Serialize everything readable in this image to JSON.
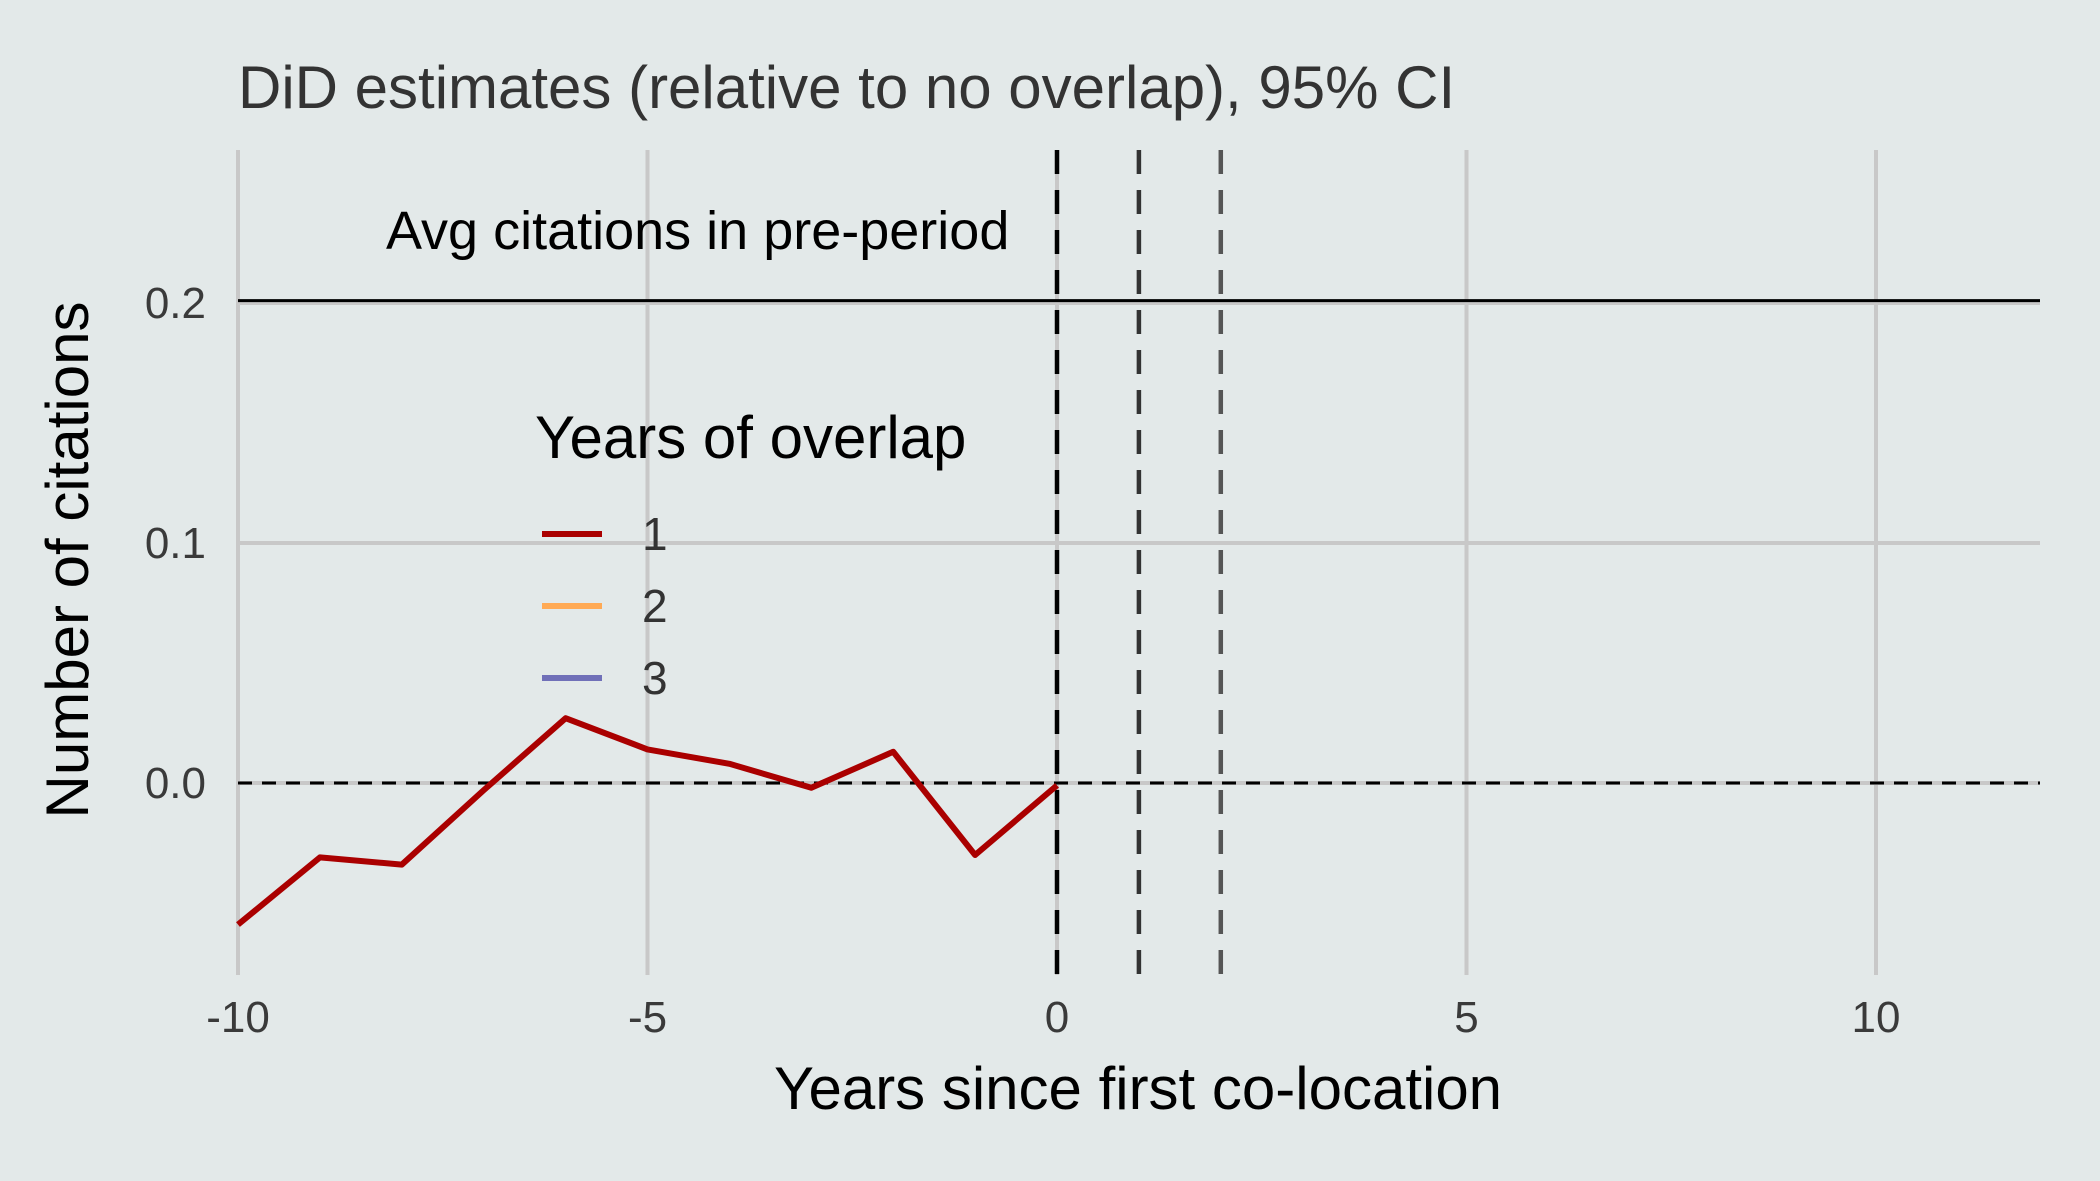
{
  "chart_data": {
    "type": "line",
    "title": "DiD estimates (relative to no overlap), 95% CI",
    "xlabel": "Years since first co-location",
    "ylabel": "Number of citations",
    "xlim": [
      -11,
      11
    ],
    "ylim": [
      -0.075,
      0.26
    ],
    "x_ticks": [
      -10,
      -5,
      0,
      5,
      10
    ],
    "x_tick_labels": [
      "-10",
      "-5",
      "0",
      "5",
      "10"
    ],
    "y_ticks": [
      0.0,
      0.1,
      0.2
    ],
    "y_tick_labels": [
      "0.0",
      "0.1",
      "0.2"
    ],
    "grid": true,
    "legend": {
      "title": "Years of overlap",
      "placement": "center-left",
      "entries": [
        {
          "label": "1",
          "color": "#aa0000"
        },
        {
          "label": "2",
          "color": "#ffaa55"
        },
        {
          "label": "3",
          "color": "#7070b8"
        }
      ]
    },
    "series": [
      {
        "name": "1",
        "color": "#aa0000",
        "x": [
          -10,
          -9,
          -8,
          -7,
          -6,
          -5,
          -4,
          -3,
          -2,
          -1,
          0
        ],
        "y": [
          -0.059,
          -0.031,
          -0.034,
          -0.003,
          0.027,
          0.014,
          0.008,
          -0.002,
          0.013,
          -0.03,
          -0.001
        ]
      },
      {
        "name": "2",
        "color": "#ffaa55",
        "x": [],
        "y": []
      },
      {
        "name": "3",
        "color": "#7070b8",
        "x": [],
        "y": []
      }
    ],
    "reference_lines": {
      "horizontal_solid": {
        "y": 0.201,
        "label": "Avg citations in pre-period",
        "color": "#000000"
      },
      "horizontal_dashed": {
        "y": 0.0,
        "color": "#000000"
      },
      "vertical_dashed": [
        {
          "x": 0,
          "color": "#000000"
        },
        {
          "x": 1,
          "color": "#333333"
        },
        {
          "x": 2,
          "color": "#555555"
        }
      ]
    },
    "colors": {
      "background": "#e3e9e9",
      "grid": "#c8c8c8"
    }
  }
}
